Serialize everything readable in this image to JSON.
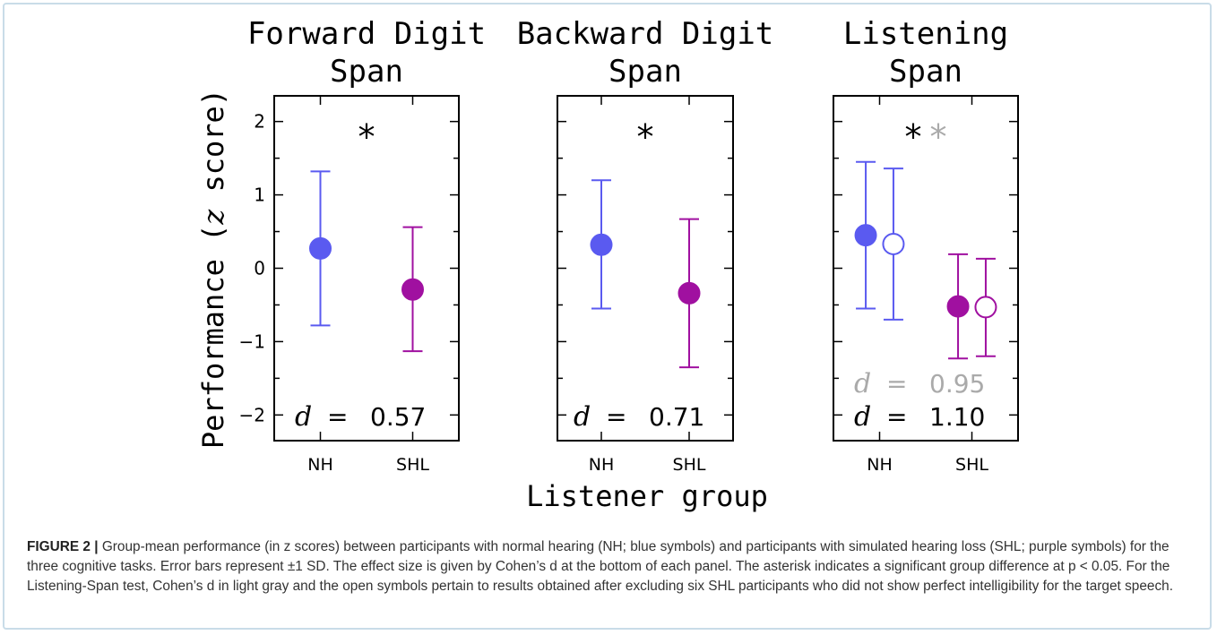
{
  "chart_data": [
    {
      "type": "scatter",
      "title_lines": [
        "Forward Digit",
        "Span"
      ],
      "categories": [
        "NH",
        "SHL"
      ],
      "series": [
        {
          "group": "NH",
          "filled": true,
          "x": 1,
          "mean": 0.27,
          "sd_low": -0.78,
          "sd_high": 1.32
        },
        {
          "group": "SHL",
          "filled": true,
          "x": 2,
          "mean": -0.29,
          "sd_low": -1.13,
          "sd_high": 0.56
        }
      ],
      "asterisks": [
        {
          "text": "*",
          "color": "#000000"
        }
      ],
      "effect_sizes": [
        {
          "label": "d",
          "equals": "=",
          "value": "0.57",
          "color": "#000000"
        }
      ]
    },
    {
      "type": "scatter",
      "title_lines": [
        "Backward Digit",
        "Span"
      ],
      "categories": [
        "NH",
        "SHL"
      ],
      "series": [
        {
          "group": "NH",
          "filled": true,
          "x": 1,
          "mean": 0.32,
          "sd_low": -0.55,
          "sd_high": 1.2
        },
        {
          "group": "SHL",
          "filled": true,
          "x": 2,
          "mean": -0.34,
          "sd_low": -1.35,
          "sd_high": 0.67
        }
      ],
      "asterisks": [
        {
          "text": "*",
          "color": "#000000"
        }
      ],
      "effect_sizes": [
        {
          "label": "d",
          "equals": "=",
          "value": "0.71",
          "color": "#000000"
        }
      ]
    },
    {
      "type": "scatter",
      "title_lines": [
        "Listening",
        "Span"
      ],
      "categories": [
        "NH",
        "SHL"
      ],
      "series": [
        {
          "group": "NH",
          "filled": true,
          "x": 0.85,
          "mean": 0.45,
          "sd_low": -0.55,
          "sd_high": 1.45
        },
        {
          "group": "NH",
          "filled": false,
          "x": 1.15,
          "mean": 0.33,
          "sd_low": -0.7,
          "sd_high": 1.36
        },
        {
          "group": "SHL",
          "filled": true,
          "x": 1.85,
          "mean": -0.52,
          "sd_low": -1.23,
          "sd_high": 0.19
        },
        {
          "group": "SHL",
          "filled": false,
          "x": 2.15,
          "mean": -0.53,
          "sd_low": -1.2,
          "sd_high": 0.13
        }
      ],
      "asterisks": [
        {
          "text": "*",
          "color": "#000000"
        },
        {
          "text": "*",
          "color": "#aaaaaa"
        }
      ],
      "effect_sizes": [
        {
          "label": "d",
          "equals": "=",
          "value": "0.95",
          "color": "#aaaaaa"
        },
        {
          "label": "d",
          "equals": "=",
          "value": "1.10",
          "color": "#000000"
        }
      ]
    }
  ],
  "axes": {
    "ylabel_prefix": "Performance (",
    "ylabel_var": "z",
    "ylabel_suffix": " score)",
    "xlabel": "Listener group",
    "ylim": [
      -2.35,
      2.35
    ],
    "yticks": [
      "2",
      "1",
      "0",
      "−1",
      "−2"
    ],
    "ytick_values": [
      2,
      1,
      0,
      -1,
      -2
    ],
    "xlim": [
      0.5,
      2.5
    ]
  },
  "colors": {
    "NH": "#5a5af0",
    "SHL": "#a010a0",
    "gray": "#aaaaaa",
    "axis": "#000000"
  },
  "caption": {
    "figure_label": "FIGURE 2 |",
    "text": " Group-mean performance (in z scores) between participants with normal hearing (NH; blue symbols) and participants with simulated hearing loss (SHL; purple symbols) for the three cognitive tasks. Error bars represent ±1 SD. The effect size is given by Cohen’s d at the bottom of each panel. The asterisk indicates a significant group difference at p < 0.05. For the Listening-Span test, Cohen’s d in light gray and the open symbols pertain to results obtained after excluding six SHL participants who did not show perfect intelligibility for the target speech."
  }
}
